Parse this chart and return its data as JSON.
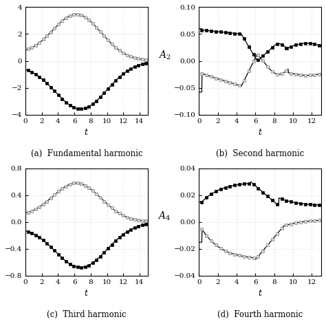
{
  "subplots": [
    {
      "label": "(a) Fundamental harmonic",
      "ylabel": "",
      "xlim": [
        0,
        15
      ],
      "ylim": [
        -4,
        4
      ],
      "yticks": [
        -4,
        -2,
        0,
        2,
        4
      ],
      "xticks": [
        0,
        2,
        4,
        6,
        8,
        10,
        12,
        14
      ]
    },
    {
      "label": "(b) Second harmonic",
      "ylabel": "$A_2$",
      "xlim": [
        0,
        13
      ],
      "ylim": [
        -0.1,
        0.1
      ],
      "yticks": [
        -0.1,
        -0.05,
        0,
        0.05,
        0.1
      ],
      "xticks": [
        0,
        2,
        4,
        6,
        8,
        10,
        12
      ]
    },
    {
      "label": "(c) Third harmonic",
      "ylabel": "",
      "xlim": [
        0,
        15
      ],
      "ylim": [
        -0.8,
        0.8
      ],
      "yticks": [
        -0.8,
        -0.4,
        0,
        0.4,
        0.8
      ],
      "xticks": [
        0,
        2,
        4,
        6,
        8,
        10,
        12,
        14
      ]
    },
    {
      "label": "(d) Fourth harmonic",
      "ylabel": "$A_4$",
      "xlim": [
        0,
        13
      ],
      "ylim": [
        -0.04,
        0.04
      ],
      "yticks": [
        -0.04,
        -0.02,
        0,
        0.02,
        0.04
      ],
      "xticks": [
        0,
        2,
        4,
        6,
        8,
        10,
        12
      ]
    }
  ]
}
